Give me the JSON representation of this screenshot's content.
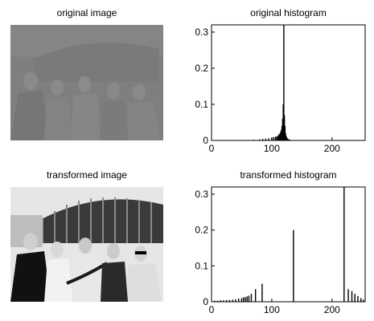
{
  "panels": {
    "original_image": {
      "title": "original image"
    },
    "transformed_image": {
      "title": "transformed image"
    }
  },
  "chart_data": [
    {
      "type": "bar",
      "title": "original histogram",
      "xlabel": "",
      "ylabel": "",
      "xlim": [
        0,
        255
      ],
      "ylim": [
        0,
        0.32
      ],
      "xticks": [
        0,
        100,
        200
      ],
      "yticks": [
        0,
        0.1,
        0.2,
        0.3
      ],
      "grid": false,
      "x": [
        60,
        70,
        80,
        85,
        90,
        95,
        100,
        103,
        106,
        108,
        110,
        111,
        112,
        113,
        114,
        115,
        116,
        117,
        118,
        119,
        120,
        121,
        122,
        123,
        124,
        125,
        126,
        127,
        128,
        130,
        132,
        135
      ],
      "values": [
        0.001,
        0.002,
        0.003,
        0.004,
        0.005,
        0.006,
        0.008,
        0.009,
        0.01,
        0.011,
        0.012,
        0.014,
        0.016,
        0.018,
        0.02,
        0.025,
        0.03,
        0.04,
        0.06,
        0.1,
        0.32,
        0.07,
        0.04,
        0.02,
        0.012,
        0.008,
        0.005,
        0.004,
        0.003,
        0.002,
        0.001,
        0.001
      ]
    },
    {
      "type": "bar",
      "title": "transformed histogram",
      "xlabel": "",
      "ylabel": "",
      "xlim": [
        0,
        255
      ],
      "ylim": [
        0,
        0.32
      ],
      "xticks": [
        0,
        100,
        200
      ],
      "yticks": [
        0,
        0.1,
        0.2,
        0.3
      ],
      "grid": false,
      "x": [
        5,
        10,
        15,
        20,
        25,
        30,
        35,
        40,
        45,
        50,
        53,
        56,
        59,
        62,
        66,
        73,
        84,
        136,
        220,
        227,
        233,
        238,
        243,
        248,
        252
      ],
      "values": [
        0.003,
        0.003,
        0.004,
        0.004,
        0.005,
        0.005,
        0.006,
        0.007,
        0.009,
        0.01,
        0.012,
        0.013,
        0.015,
        0.017,
        0.022,
        0.035,
        0.05,
        0.2,
        0.32,
        0.035,
        0.03,
        0.022,
        0.016,
        0.01,
        0.006
      ]
    }
  ]
}
